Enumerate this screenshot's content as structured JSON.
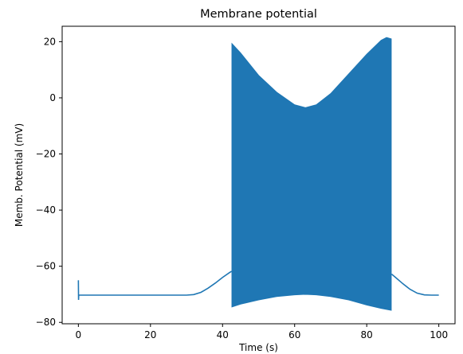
{
  "chart_data": {
    "type": "line",
    "title": "Membrane potential",
    "xlabel": "Time (s)",
    "ylabel": "Memb. Potential (mV)",
    "xlim": [
      -4.5,
      104.5
    ],
    "ylim": [
      -80.5,
      25.5
    ],
    "xticks": [
      0,
      20,
      40,
      60,
      80,
      100
    ],
    "yticks": [
      -80,
      -60,
      -40,
      -20,
      0,
      20
    ],
    "grid": false,
    "legend": "none",
    "series_color": "#1f77b4",
    "series": [
      {
        "baseline_trace": [
          [
            0,
            -65
          ],
          [
            0.05,
            -72
          ],
          [
            0.1,
            -70.3
          ],
          [
            1,
            -70.3
          ],
          [
            10,
            -70.3
          ],
          [
            20,
            -70.3
          ],
          [
            30,
            -70.3
          ],
          [
            32,
            -70.1
          ],
          [
            34,
            -69.3
          ],
          [
            36,
            -67.8
          ],
          [
            38,
            -66.0
          ],
          [
            40,
            -64.0
          ],
          [
            42,
            -62.2
          ],
          [
            42.5,
            -61.8
          ]
        ],
        "spiking_envelope_top": [
          [
            42.6,
            19.3
          ],
          [
            45,
            16
          ],
          [
            50,
            8
          ],
          [
            55,
            2
          ],
          [
            60,
            -2.5
          ],
          [
            63,
            -3.5
          ],
          [
            66,
            -2.5
          ],
          [
            70,
            1.5
          ],
          [
            75,
            8.5
          ],
          [
            80,
            15.5
          ],
          [
            84,
            20.5
          ],
          [
            85.5,
            21.5
          ],
          [
            86.8,
            21
          ]
        ],
        "spiking_envelope_bottom": [
          [
            42.6,
            -74.5
          ],
          [
            45,
            -73.5
          ],
          [
            50,
            -72
          ],
          [
            55,
            -70.8
          ],
          [
            60,
            -70.2
          ],
          [
            63,
            -70.0
          ],
          [
            66,
            -70.2
          ],
          [
            70,
            -70.8
          ],
          [
            75,
            -72
          ],
          [
            80,
            -73.8
          ],
          [
            84,
            -75
          ],
          [
            86.8,
            -75.7
          ]
        ],
        "recovery_trace": [
          [
            86.9,
            -62.8
          ],
          [
            88,
            -64.0
          ],
          [
            90,
            -66.2
          ],
          [
            92,
            -68.2
          ],
          [
            94,
            -69.6
          ],
          [
            96,
            -70.2
          ],
          [
            98,
            -70.3
          ],
          [
            100,
            -70.3
          ]
        ]
      }
    ]
  }
}
